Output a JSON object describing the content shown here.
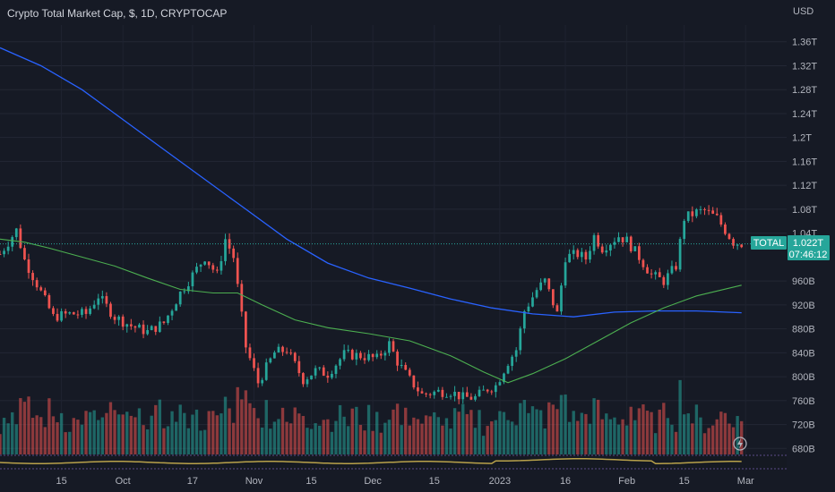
{
  "header": {
    "title": "Crypto Total Market Cap, $, 1D, CRYPTOCAP",
    "currency": "USD"
  },
  "price_axis": {
    "labels": [
      "1.36T",
      "1.32T",
      "1.28T",
      "1.24T",
      "1.2T",
      "1.16T",
      "1.12T",
      "1.08T",
      "1.04T",
      "960B",
      "920B",
      "880B",
      "840B",
      "800B",
      "760B",
      "720B",
      "680B"
    ],
    "values": [
      1360,
      1320,
      1280,
      1240,
      1200,
      1160,
      1120,
      1080,
      1040,
      960,
      920,
      880,
      840,
      800,
      760,
      720,
      680
    ],
    "ylim": [
      667,
      1388
    ]
  },
  "time_axis": {
    "labels": [
      "15",
      "Oct",
      "17",
      "Nov",
      "15",
      "Dec",
      "15",
      "2023",
      "16",
      "Feb",
      "15",
      "Mar"
    ],
    "days": [
      15,
      30,
      47,
      62,
      76,
      91,
      106,
      122,
      138,
      153,
      167,
      182
    ]
  },
  "current": {
    "symbol": "TOTAL",
    "price": "1.022T",
    "countdown": "07:46:12",
    "value": 1022
  },
  "colors": {
    "background": "#161a25",
    "up": "#26a69a",
    "down": "#ef5350",
    "ma_long": "#2962ff",
    "ma_short": "#4caf50",
    "label_bg": "#26a69a",
    "text": "#d1d4dc"
  },
  "icons": {
    "lightning": "lightning-icon"
  },
  "chart_data": {
    "type": "candlestick",
    "x_range_days": [
      0,
      192
    ],
    "anchors": [
      [
        0,
        970,
        1040
      ],
      [
        4,
        1040,
        1050
      ],
      [
        6,
        960,
        1030
      ],
      [
        9,
        950,
        960
      ],
      [
        13,
        870,
        930
      ],
      [
        17,
        900,
        910
      ],
      [
        21,
        890,
        920
      ],
      [
        24,
        930,
        940
      ],
      [
        28,
        890,
        910
      ],
      [
        32,
        880,
        890
      ],
      [
        36,
        870,
        880
      ],
      [
        40,
        880,
        900
      ],
      [
        44,
        930,
        950
      ],
      [
        47,
        960,
        980
      ],
      [
        50,
        990,
        1010
      ],
      [
        53,
        960,
        980
      ],
      [
        55,
        1020,
        1040
      ],
      [
        57,
        990,
        1010
      ],
      [
        58,
        940,
        960
      ],
      [
        60,
        820,
        880
      ],
      [
        63,
        760,
        820
      ],
      [
        67,
        830,
        850
      ],
      [
        70,
        840,
        850
      ],
      [
        74,
        790,
        800
      ],
      [
        77,
        800,
        820
      ],
      [
        80,
        790,
        820
      ],
      [
        84,
        830,
        845
      ],
      [
        88,
        830,
        840
      ],
      [
        92,
        825,
        835
      ],
      [
        95,
        850,
        860
      ],
      [
        97,
        820,
        830
      ],
      [
        100,
        790,
        800
      ],
      [
        103,
        760,
        780
      ],
      [
        107,
        770,
        780
      ],
      [
        110,
        770,
        780
      ],
      [
        113,
        760,
        770
      ],
      [
        116,
        760,
        770
      ],
      [
        119,
        770,
        790
      ],
      [
        121,
        780,
        790
      ],
      [
        124,
        820,
        830
      ],
      [
        126,
        830,
        860
      ],
      [
        128,
        900,
        920
      ],
      [
        131,
        930,
        960
      ],
      [
        133,
        950,
        970
      ],
      [
        136,
        900,
        910
      ],
      [
        138,
        990,
        1010
      ],
      [
        141,
        1000,
        1010
      ],
      [
        143,
        990,
        1005
      ],
      [
        145,
        1030,
        1040
      ],
      [
        147,
        1010,
        1020
      ],
      [
        149,
        1020,
        1030
      ],
      [
        151,
        1030,
        1040
      ],
      [
        153,
        1020,
        1035
      ],
      [
        156,
        990,
        1010
      ],
      [
        159,
        960,
        980
      ],
      [
        162,
        950,
        970
      ],
      [
        165,
        980,
        990
      ],
      [
        167,
        1060,
        1070
      ],
      [
        170,
        1070,
        1080
      ],
      [
        172,
        1070,
        1085
      ],
      [
        175,
        1060,
        1070
      ],
      [
        177,
        1040,
        1050
      ],
      [
        179,
        1020,
        1030
      ],
      [
        181,
        1020,
        1025
      ]
    ],
    "ma_long": [
      [
        0,
        1350
      ],
      [
        10,
        1320
      ],
      [
        20,
        1280
      ],
      [
        30,
        1230
      ],
      [
        40,
        1180
      ],
      [
        50,
        1130
      ],
      [
        60,
        1080
      ],
      [
        70,
        1030
      ],
      [
        80,
        990
      ],
      [
        90,
        965
      ],
      [
        100,
        948
      ],
      [
        110,
        930
      ],
      [
        120,
        915
      ],
      [
        130,
        905
      ],
      [
        140,
        900
      ],
      [
        150,
        908
      ],
      [
        160,
        910
      ],
      [
        170,
        910
      ],
      [
        181,
        907
      ]
    ],
    "ma_short": [
      [
        0,
        1030
      ],
      [
        6,
        1025
      ],
      [
        12,
        1015
      ],
      [
        20,
        1000
      ],
      [
        28,
        985
      ],
      [
        36,
        965
      ],
      [
        44,
        946
      ],
      [
        52,
        940
      ],
      [
        58,
        940
      ],
      [
        64,
        920
      ],
      [
        72,
        895
      ],
      [
        80,
        882
      ],
      [
        90,
        872
      ],
      [
        100,
        860
      ],
      [
        110,
        835
      ],
      [
        118,
        808
      ],
      [
        124,
        790
      ],
      [
        130,
        805
      ],
      [
        138,
        830
      ],
      [
        146,
        860
      ],
      [
        154,
        890
      ],
      [
        162,
        915
      ],
      [
        170,
        935
      ],
      [
        181,
        953
      ]
    ]
  }
}
